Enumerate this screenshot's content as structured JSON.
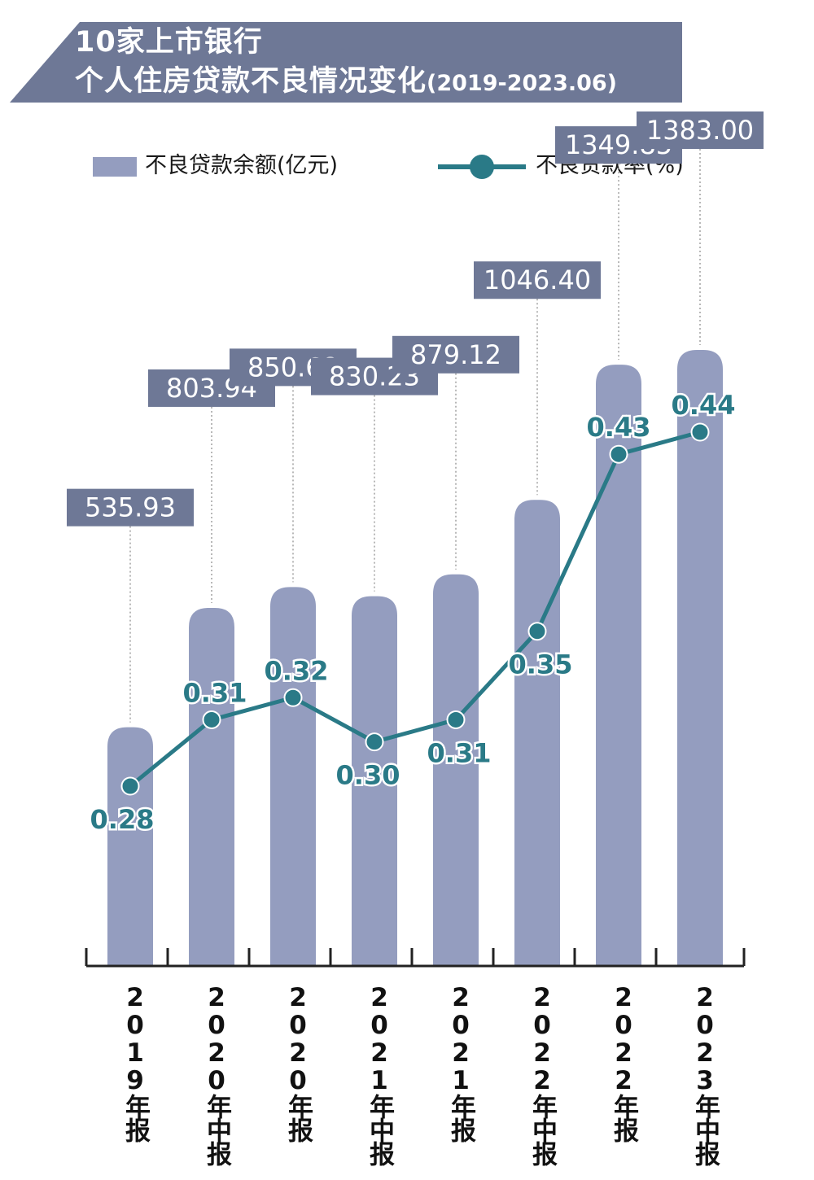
{
  "title": {
    "line1": "10家上市银行",
    "line2_main": "个人住房贷款不良情况变化",
    "line2_sub": "(2019-2023.06)"
  },
  "legend": {
    "bar": "不良贷款余额(亿元)",
    "line": "不良贷款率(%)"
  },
  "colors": {
    "banner": "#6e7896",
    "bar": "#949dbf",
    "value_box": "#6e7896",
    "line": "#2a7a87",
    "axis": "#222222"
  },
  "chart_data": {
    "type": "bar+line",
    "categories": [
      "2019年报",
      "2020年中报",
      "2020年报",
      "2021年中报",
      "2021年报",
      "2022年中报",
      "2022年报",
      "2023年中报"
    ],
    "series": [
      {
        "name": "不良贷款余额(亿元)",
        "type": "bar",
        "values": [
          535.93,
          803.94,
          850.68,
          830.23,
          879.12,
          1046.4,
          1349.85,
          1383.0
        ],
        "labels": [
          "535.93",
          "803.94",
          "850.68",
          "830.23",
          "879.12",
          "1046.40",
          "1349.85",
          "1383.00"
        ]
      },
      {
        "name": "不良贷款率(%)",
        "type": "line",
        "values": [
          0.28,
          0.31,
          0.32,
          0.3,
          0.31,
          0.35,
          0.43,
          0.44
        ],
        "labels": [
          "0.28",
          "0.31",
          "0.32",
          "0.30",
          "0.31",
          "0.35",
          "0.43",
          "0.44"
        ]
      }
    ]
  }
}
